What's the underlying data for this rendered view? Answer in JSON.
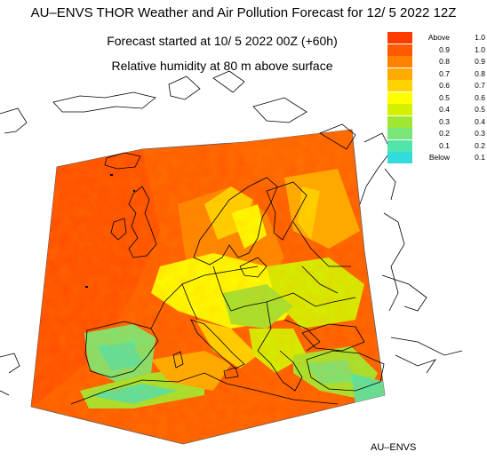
{
  "header": {
    "title": "AU–ENVS THOR Weather and Air Pollution Forecast for 12/ 5 2022  12Z",
    "forecast_start": "Forecast started at 10/ 5 2022  00Z (+60h)",
    "variable": "Relative humidity at 80 m above surface"
  },
  "legend": {
    "items": [
      {
        "lo": "Above",
        "hi": "1.0",
        "color": "#ff3c00"
      },
      {
        "lo": "0.9",
        "hi": "1.0",
        "color": "#ff5a00"
      },
      {
        "lo": "0.8",
        "hi": "0.9",
        "color": "#ff8200"
      },
      {
        "lo": "0.7",
        "hi": "0.8",
        "color": "#ffaa00"
      },
      {
        "lo": "0.6",
        "hi": "0.7",
        "color": "#ffd200"
      },
      {
        "lo": "0.5",
        "hi": "0.6",
        "color": "#ffff00"
      },
      {
        "lo": "0.4",
        "hi": "0.5",
        "color": "#d2f000"
      },
      {
        "lo": "0.3",
        "hi": "0.4",
        "color": "#a0e632"
      },
      {
        "lo": "0.2",
        "hi": "0.3",
        "color": "#78e678"
      },
      {
        "lo": "0.1",
        "hi": "0.2",
        "color": "#50e6aa"
      },
      {
        "lo": "Below",
        "hi": "0.1",
        "color": "#32dcdc"
      }
    ]
  },
  "credit": "AU–ENVS"
}
